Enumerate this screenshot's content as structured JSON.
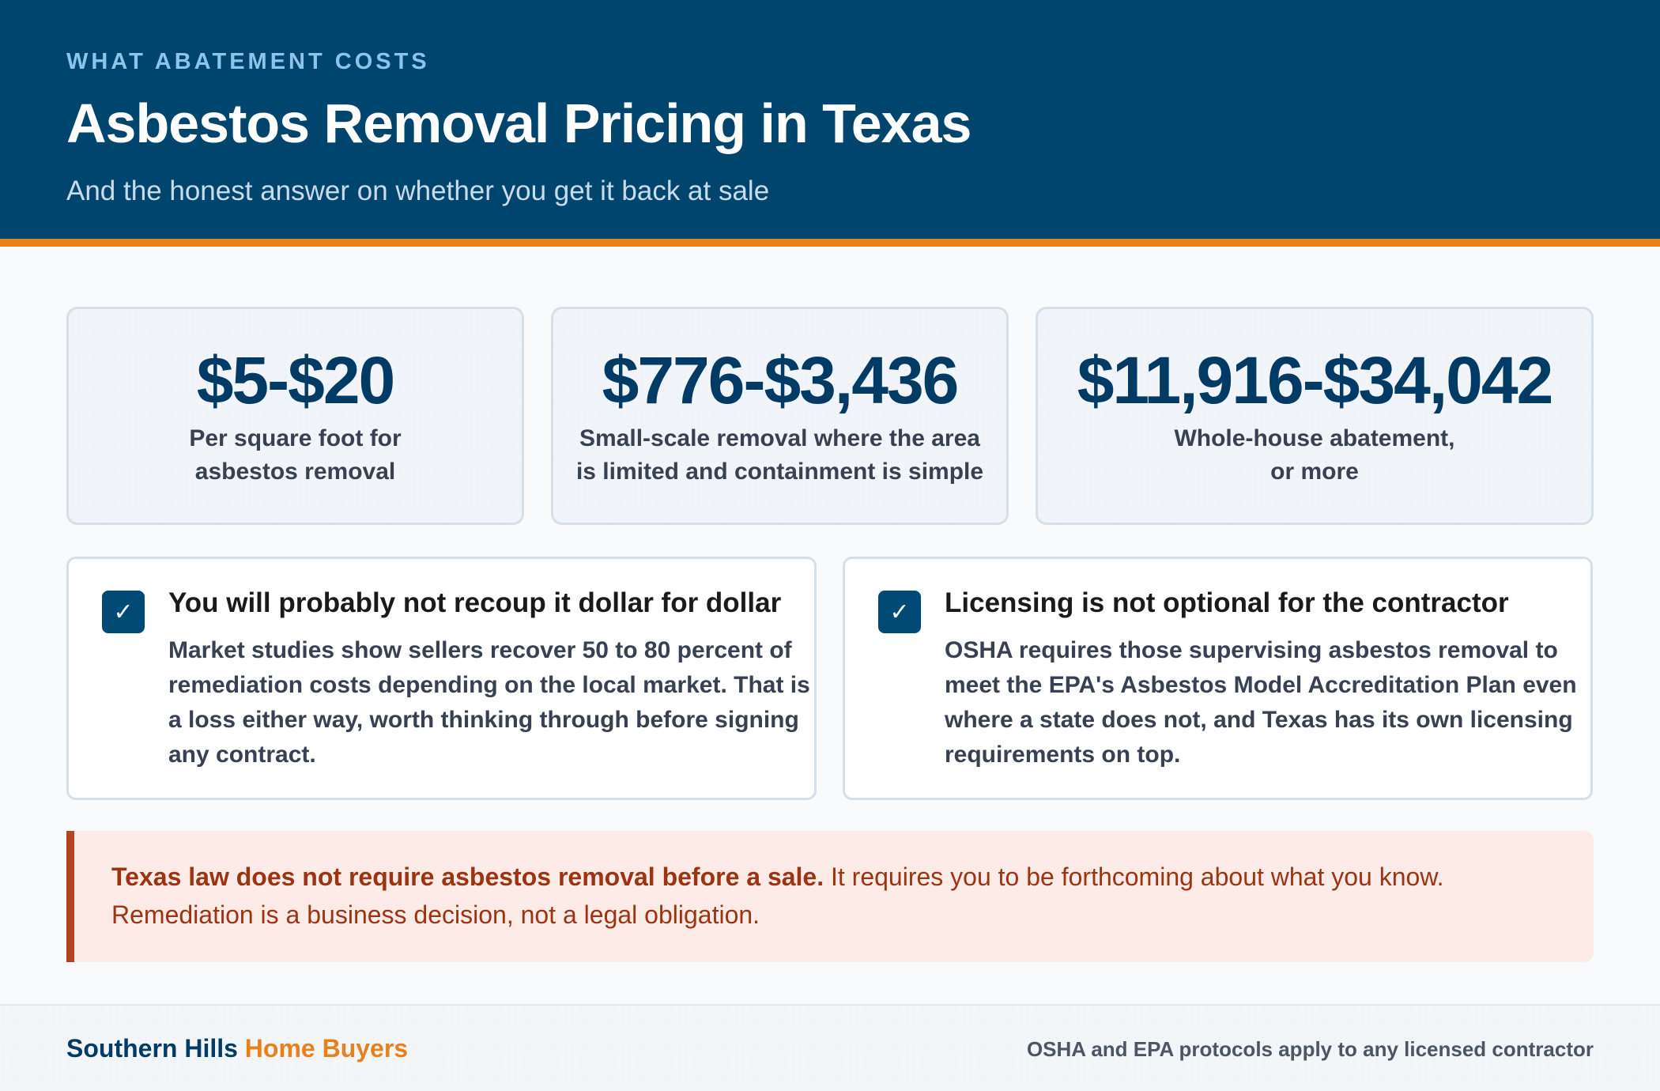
{
  "header": {
    "eyebrow": "WHAT ABATEMENT COSTS",
    "title": "Asbestos Removal Pricing in Texas",
    "subtitle": "And the honest answer on whether you get it back at sale"
  },
  "stats": [
    {
      "value": "$5-$20",
      "caption_lines": [
        "Per square foot for",
        "asbestos removal"
      ]
    },
    {
      "value": "$776-$3,436",
      "caption_lines": [
        "Small-scale removal where the area",
        "is limited and containment is simple"
      ]
    },
    {
      "value": "$11,916-$34,042",
      "caption_lines": [
        "Whole-house abatement,",
        "or more"
      ]
    }
  ],
  "cards": [
    {
      "check_icon": "✓",
      "title": "You will probably not recoup it dollar for dollar",
      "body_lines": [
        "Market studies show sellers recover 50 to 80 percent of",
        "remediation costs depending on the local market. That is",
        "a loss either way, worth thinking through before signing",
        "any contract."
      ]
    },
    {
      "check_icon": "✓",
      "title": "Licensing is not optional for the contractor",
      "body_lines": [
        "OSHA requires those supervising asbestos removal to",
        "meet the EPA's Asbestos Model Accreditation Plan even",
        "where a state does not, and Texas has its own licensing",
        "requirements on top."
      ]
    }
  ],
  "callout": {
    "bold": "Texas law does not require asbestos removal before a sale.",
    "rest": " It requires you to be forthcoming about what you know.",
    "line2": "Remediation is a business decision, not a legal obligation."
  },
  "footer": {
    "brand_primary": "Southern Hills",
    "brand_secondary": "Home Buyers",
    "note": "OSHA and EPA protocols apply to any licensed contractor"
  },
  "colors": {
    "header_bg": "#00456e",
    "accent_orange": "#e8801c",
    "navy_text": "#003b66",
    "callout_bg": "#fcebe6",
    "callout_text": "#9c3412"
  }
}
